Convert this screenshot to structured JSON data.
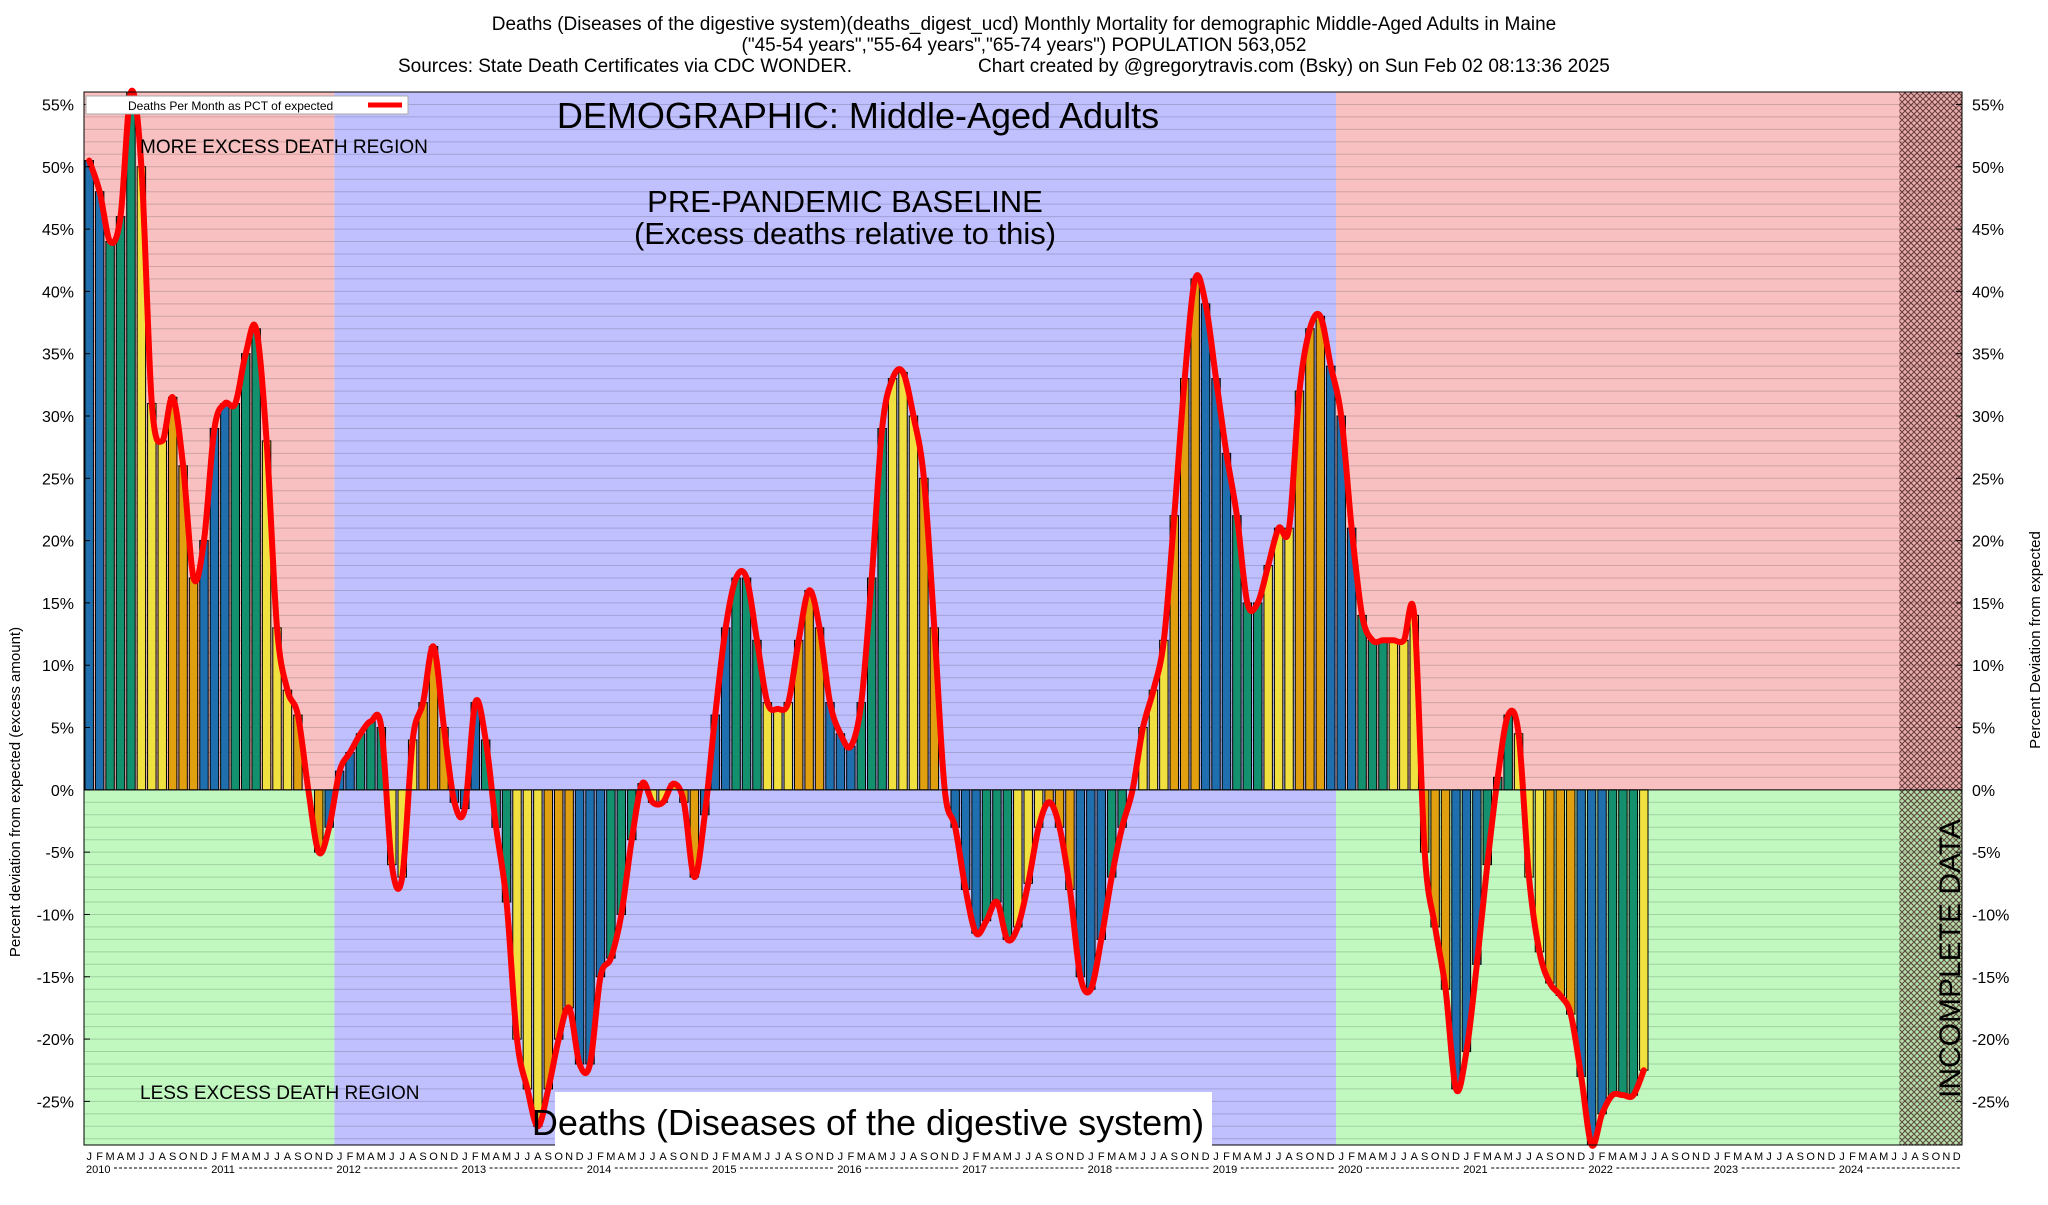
{
  "header": {
    "title_line1": "Deaths (Diseases of the digestive system)(deaths_digest_ucd) Monthly Mortality for demographic Middle-Aged Adults in Maine",
    "title_line2": "(\"45-54 years\",\"55-64 years\",\"65-74 years\") POPULATION 563,052",
    "sources": "Sources: State Death Certificates via CDC WONDER.",
    "credit": "Chart created by @gregorytravis.com (Bsky) on Sun Feb 02 08:13:36 2025"
  },
  "chart_data": {
    "type": "bar",
    "ylabel_left": "Percent deviation from expected (excess amount)",
    "ylabel_right": "Percent Deviation from expected",
    "legend": "Deaths Per Month as PCT of expected",
    "legend_position": "top-left",
    "ylim": [
      -28.5,
      56
    ],
    "yticks": [
      55,
      50,
      45,
      40,
      35,
      30,
      25,
      20,
      15,
      10,
      5,
      0,
      -5,
      -10,
      -15,
      -20,
      -25
    ],
    "grid": "horizontal",
    "annotations": {
      "demographic": "DEMOGRAPHIC: Middle-Aged Adults",
      "more_excess": "MORE EXCESS DEATH REGION",
      "less_excess": "LESS EXCESS DEATH REGION",
      "baseline_line1": "PRE-PANDEMIC BASELINE",
      "baseline_line2": "(Excess deaths relative to this)",
      "cause": "Deaths (Diseases of the digestive system)",
      "incomplete": "INCOMPLETE DATA"
    },
    "baseline_period": [
      "2012-01",
      "2019-12"
    ],
    "incomplete_period": [
      "2024-07",
      "2024-12"
    ],
    "month_letters": [
      "J",
      "F",
      "M",
      "A",
      "M",
      "J",
      "J",
      "A",
      "S",
      "O",
      "N",
      "D"
    ],
    "years": [
      "2010",
      "2011",
      "2012",
      "2013",
      "2014",
      "2015",
      "2016",
      "2017",
      "2018",
      "2019",
      "2020",
      "2021",
      "2022",
      "2023",
      "2024"
    ],
    "season_colors": [
      "#1f6fae",
      "#13906e",
      "#f0e040",
      "#e0a010"
    ],
    "region_colors": {
      "excess": "#f8c0c0",
      "deficit": "#c0f8c0",
      "baseline": "#c0c0ff",
      "line": "#ff0000"
    },
    "values": [
      50.5,
      48,
      44,
      46,
      56,
      50,
      31,
      28,
      31.5,
      26,
      17,
      20,
      29,
      31,
      31,
      35,
      37,
      28,
      13,
      8,
      6,
      0,
      -5,
      -3,
      1.5,
      3,
      4.5,
      5.5,
      5,
      -6,
      -7,
      4,
      7,
      11.5,
      5,
      -1,
      -1.5,
      7,
      4,
      -3,
      -9,
      -20,
      -24,
      -27,
      -24,
      -20,
      -17.5,
      -22,
      -22,
      -15,
      -13.5,
      -10,
      -4,
      0.5,
      -1,
      -1,
      0.5,
      -1,
      -7,
      -2,
      6,
      13,
      17,
      17,
      12,
      7,
      6.5,
      7,
      12,
      16,
      13,
      7,
      4.5,
      3.5,
      7,
      17,
      29,
      33,
      33.5,
      30,
      25,
      13,
      0,
      -3,
      -8,
      -11.5,
      -10.5,
      -9,
      -12,
      -11,
      -7.5,
      -3,
      -1,
      -3,
      -8,
      -15,
      -16,
      -12,
      -7,
      -3,
      0,
      5,
      8,
      12,
      22,
      33,
      41,
      39,
      33,
      27,
      22,
      15,
      15,
      18,
      21,
      21,
      32,
      37,
      38,
      34,
      30,
      21,
      14,
      12,
      12,
      12,
      12,
      14,
      -5,
      -11,
      -16,
      -24,
      -21,
      -14,
      -6,
      1,
      6,
      4.5,
      -7,
      -13,
      -15.5,
      -16.5,
      -18,
      -23,
      -28.5,
      -26,
      -24.5,
      -24.5,
      -24.5,
      -22.5
    ]
  }
}
